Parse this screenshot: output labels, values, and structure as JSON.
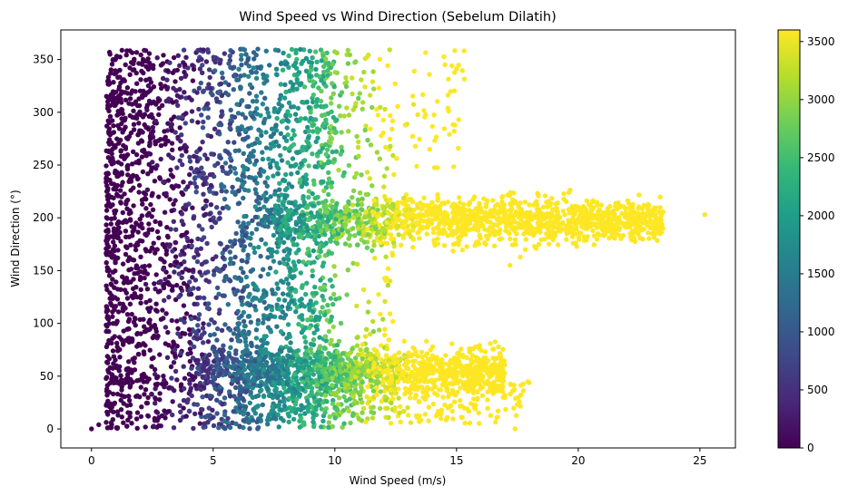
{
  "chart_data": {
    "type": "scatter",
    "title": "Wind Speed vs Wind Direction (Sebelum Dilatih)",
    "xlabel": "Wind Speed (m/s)",
    "ylabel": "Wind Direction (°)",
    "xlim": [
      -1.26,
      26.46
    ],
    "ylim": [
      -18,
      378
    ],
    "x_ticks": [
      0,
      5,
      10,
      15,
      20,
      25
    ],
    "y_ticks": [
      0,
      50,
      100,
      150,
      200,
      250,
      300,
      350
    ],
    "grid": false,
    "legend": "none",
    "colorbar": {
      "position": "right",
      "min": 0,
      "max": 3600,
      "ticks": [
        0,
        500,
        1000,
        1500,
        2000,
        2500,
        3000,
        3500
      ],
      "colormap": "viridis",
      "stops": [
        "#440154",
        "#482878",
        "#3e4989",
        "#31688e",
        "#26828e",
        "#1f9e89",
        "#35b779",
        "#6ece58",
        "#b5de2b",
        "#fde725"
      ]
    },
    "clusters": [
      {
        "x_range": [
          0.6,
          11.5
        ],
        "y_range": [
          0,
          360
        ],
        "description": "dense band low speeds all directions"
      },
      {
        "x_range": [
          11,
          25.2
        ],
        "y_range": [
          170,
          225
        ],
        "center_y": 198
      },
      {
        "x_range": [
          9,
          18.5
        ],
        "y_range": [
          20,
          85
        ],
        "center_y": 55
      }
    ],
    "notable_points": [
      {
        "x": 0,
        "y": 0
      },
      {
        "x": 0.3,
        "y": 4
      },
      {
        "x": 25.2,
        "y": 203
      },
      {
        "x": 17.4,
        "y": 0
      },
      {
        "x": 17.2,
        "y": 155
      }
    ],
    "color_rule": "color value approximately 0 below 3 m/s rising to 3600 at about 12.5 m/s"
  }
}
